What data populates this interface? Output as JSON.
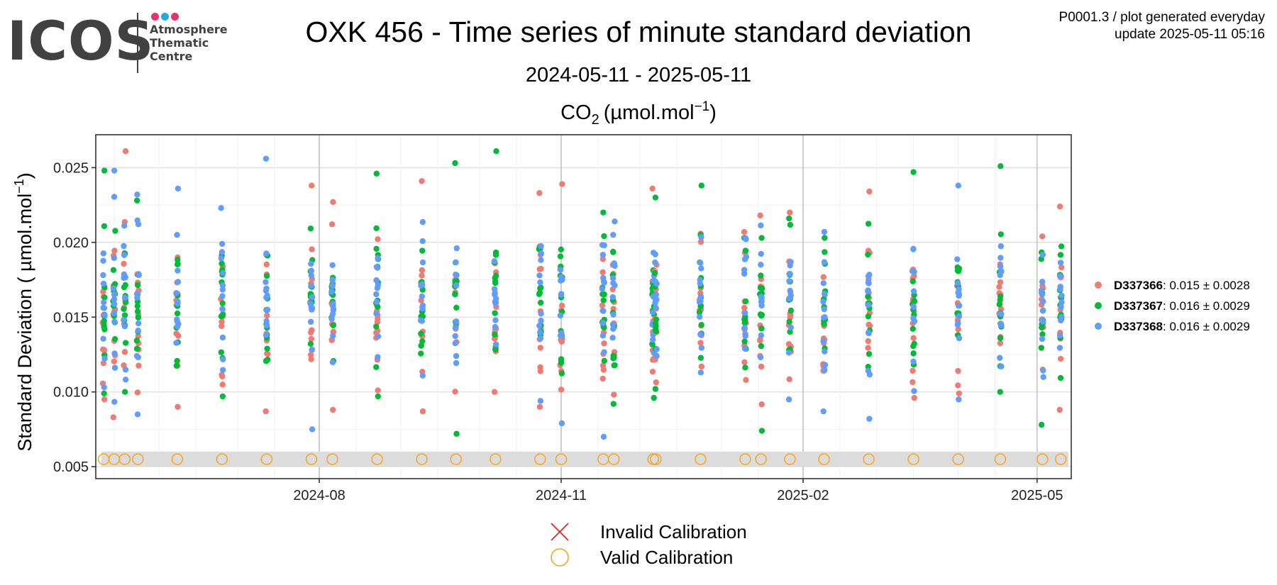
{
  "header": {
    "logo": {
      "word": "ICOS",
      "lines": [
        "Atmosphere",
        "Thematic",
        "Centre"
      ],
      "dot_colors": [
        "#e6336b",
        "#2ba6e1",
        "#e6336b"
      ]
    },
    "title": "OXK 456 - Time series of minute standard deviation",
    "date_range": "2024-05-11 - 2025-05-11",
    "meta_line_1": "P0001.3 / plot generated everyday",
    "meta_line_2": "update  2025-05-11 05:16"
  },
  "chart_data": {
    "type": "scatter",
    "subtitle_species": "CO",
    "subtitle_sub": "2",
    "subtitle_unit": "(µmol.mol",
    "subtitle_sup": "−1",
    "subtitle_close": ")",
    "ylabel": "Standard Deviation ( µmol.mol",
    "ylabel_sup": "−1",
    "ylabel_close": ")",
    "xlim": [
      "2024-05-08",
      "2025-05-14"
    ],
    "ylim": [
      0.0042,
      0.0272
    ],
    "yticks": [
      "0.005",
      "0.010",
      "0.015",
      "0.020",
      "0.025"
    ],
    "xticks": [
      {
        "date": "2024-08-01",
        "label": "2024-08"
      },
      {
        "date": "2024-11-01",
        "label": "2024-11"
      },
      {
        "date": "2025-02-01",
        "label": "2025-02"
      },
      {
        "date": "2025-05-01",
        "label": "2025-05"
      }
    ],
    "grid": true,
    "calibration_band": [
      0.005,
      0.006
    ],
    "series": [
      {
        "name": "D337366",
        "stat": ": 0.015 ± 0.0028",
        "color": "#f07b72",
        "mean": 0.015,
        "sd": 0.0028
      },
      {
        "name": "D337367",
        "stat": ": 0.016 ± 0.0029",
        "color": "#00ba38",
        "mean": 0.016,
        "sd": 0.0029
      },
      {
        "name": "D337368",
        "stat": ": 0.016 ± 0.0029",
        "color": "#619cff",
        "mean": 0.016,
        "sd": 0.0029
      }
    ],
    "clusters": [
      {
        "date": "2024-05-11",
        "min": 0.0095,
        "max": 0.0248
      },
      {
        "date": "2024-05-15",
        "min": 0.0083,
        "max": 0.0248
      },
      {
        "date": "2024-05-19",
        "min": 0.01,
        "max": 0.0261
      },
      {
        "date": "2024-05-24",
        "min": 0.0085,
        "max": 0.0232
      },
      {
        "date": "2024-06-08",
        "min": 0.009,
        "max": 0.0236
      },
      {
        "date": "2024-06-25",
        "min": 0.0097,
        "max": 0.0223
      },
      {
        "date": "2024-07-12",
        "min": 0.0087,
        "max": 0.0256
      },
      {
        "date": "2024-07-29",
        "min": 0.0075,
        "max": 0.0238
      },
      {
        "date": "2024-08-06",
        "min": 0.0088,
        "max": 0.0227
      },
      {
        "date": "2024-08-23",
        "min": 0.0097,
        "max": 0.0246
      },
      {
        "date": "2024-09-09",
        "min": 0.0087,
        "max": 0.0241
      },
      {
        "date": "2024-09-22",
        "min": 0.0072,
        "max": 0.0253
      },
      {
        "date": "2024-10-07",
        "min": 0.01,
        "max": 0.0261
      },
      {
        "date": "2024-10-24",
        "min": 0.009,
        "max": 0.0233
      },
      {
        "date": "2024-11-01",
        "min": 0.0079,
        "max": 0.0239
      },
      {
        "date": "2024-11-17",
        "min": 0.007,
        "max": 0.022
      },
      {
        "date": "2024-11-21",
        "min": 0.0092,
        "max": 0.0214
      },
      {
        "date": "2024-12-06",
        "min": 0.0096,
        "max": 0.0236
      },
      {
        "date": "2024-12-07",
        "min": 0.0102,
        "max": 0.023
      },
      {
        "date": "2024-12-24",
        "min": 0.0113,
        "max": 0.0238
      },
      {
        "date": "2025-01-10",
        "min": 0.0108,
        "max": 0.0207
      },
      {
        "date": "2025-01-16",
        "min": 0.0074,
        "max": 0.0218
      },
      {
        "date": "2025-01-27",
        "min": 0.0095,
        "max": 0.022
      },
      {
        "date": "2025-02-09",
        "min": 0.0087,
        "max": 0.0207
      },
      {
        "date": "2025-02-26",
        "min": 0.0082,
        "max": 0.0234
      },
      {
        "date": "2025-03-15",
        "min": 0.0096,
        "max": 0.0247
      },
      {
        "date": "2025-04-01",
        "min": 0.0095,
        "max": 0.0238
      },
      {
        "date": "2025-04-17",
        "min": 0.01,
        "max": 0.0251
      },
      {
        "date": "2025-05-03",
        "min": 0.0078,
        "max": 0.0204
      },
      {
        "date": "2025-05-10",
        "min": 0.0088,
        "max": 0.0224
      }
    ],
    "valid_calibrations": {
      "value": 0.0055,
      "color": "#f5a623",
      "dates": [
        "2024-05-11",
        "2024-05-15",
        "2024-05-19",
        "2024-05-24",
        "2024-06-08",
        "2024-06-25",
        "2024-07-12",
        "2024-07-29",
        "2024-08-06",
        "2024-08-23",
        "2024-09-09",
        "2024-09-22",
        "2024-10-07",
        "2024-10-24",
        "2024-11-01",
        "2024-11-17",
        "2024-11-21",
        "2024-12-06",
        "2024-12-07",
        "2024-12-24",
        "2025-01-10",
        "2025-01-16",
        "2025-01-27",
        "2025-02-09",
        "2025-02-26",
        "2025-03-15",
        "2025-04-01",
        "2025-04-17",
        "2025-05-03",
        "2025-05-10"
      ]
    },
    "calibration_legend": [
      {
        "label": "Invalid Calibration",
        "color": "#e02020",
        "marker": "x"
      },
      {
        "label": "Valid Calibration",
        "color": "#f5a623",
        "marker": "circle"
      }
    ]
  }
}
